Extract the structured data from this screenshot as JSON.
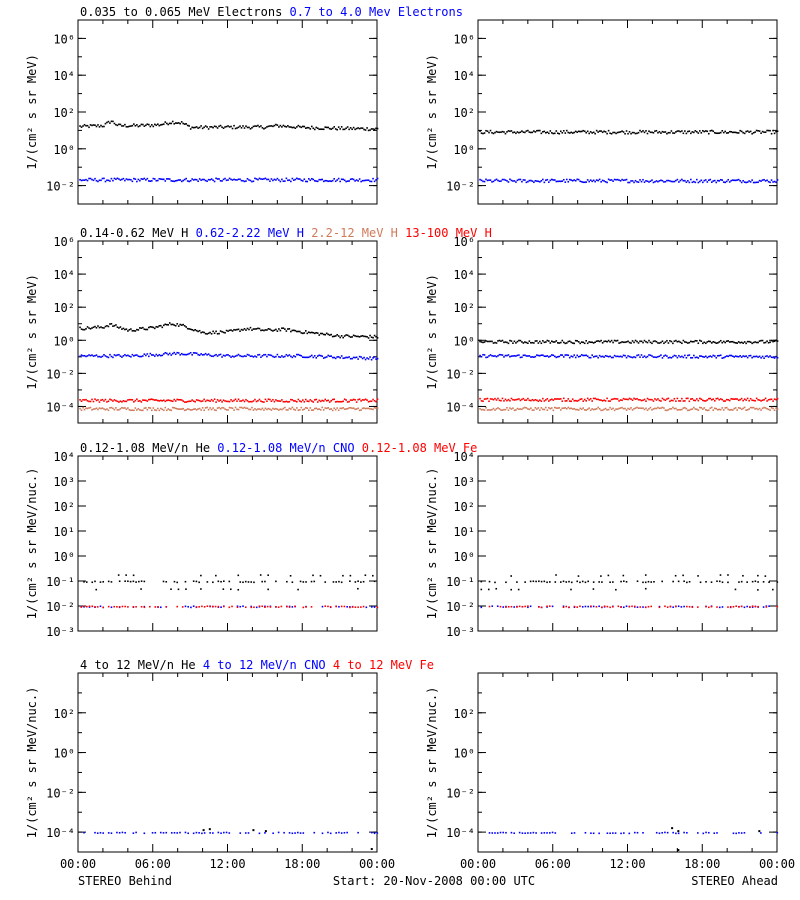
{
  "footer": {
    "left": "STEREO Behind",
    "center": "Start: 20-Nov-2008 00:00 UTC",
    "right": "STEREO Ahead"
  },
  "x_tick_labels": [
    "00:00",
    "06:00",
    "12:00",
    "18:00",
    "00:00"
  ],
  "colors": {
    "black": "#000000",
    "blue": "#0000ff",
    "orange": "#d07a5a",
    "red": "#ff0000"
  },
  "chart_data": [
    {
      "id": "electrons",
      "type": "scatter",
      "ylabel": "1/(cm² s sr MeV)",
      "ylim_log10": [
        -3,
        7
      ],
      "y_ticks": [
        {
          "exp": -2,
          "label": "10⁻²"
        },
        {
          "exp": 0,
          "label": "10⁰"
        },
        {
          "exp": 2,
          "label": "10²"
        },
        {
          "exp": 4,
          "label": "10⁴"
        },
        {
          "exp": 6,
          "label": "10⁶"
        }
      ],
      "legend": [
        {
          "text": "0.035 to 0.065 MeV Electrons",
          "color": "#000000"
        },
        {
          "text": "0.7 to 4.0 Mev Electrons",
          "color": "#0000ff"
        }
      ],
      "behind": [
        {
          "name": "0.035 to 0.065 MeV Electrons",
          "color": "#000000",
          "log_points": [
            [
              0,
              1.25
            ],
            [
              2,
              1.3
            ],
            [
              2.6,
              1.55
            ],
            [
              3.2,
              1.3
            ],
            [
              5,
              1.3
            ],
            [
              6.5,
              1.35
            ],
            [
              7.5,
              1.5
            ],
            [
              8.3,
              1.45
            ],
            [
              9,
              1.2
            ],
            [
              12,
              1.22
            ],
            [
              15,
              1.22
            ],
            [
              16,
              1.3
            ],
            [
              18,
              1.2
            ],
            [
              21,
              1.15
            ],
            [
              24,
              1.12
            ]
          ]
        },
        {
          "name": "0.7 to 4.0 Mev Electrons",
          "color": "#0000ff",
          "log_points": [
            [
              0,
              -1.65
            ],
            [
              24,
              -1.65
            ]
          ]
        }
      ],
      "ahead": [
        {
          "name": "0.035 to 0.065 MeV Electrons",
          "color": "#000000",
          "log_points": [
            [
              0,
              0.95
            ],
            [
              24,
              0.95
            ]
          ]
        },
        {
          "name": "0.7 to 4.0 Mev Electrons",
          "color": "#0000ff",
          "log_points": [
            [
              0,
              -1.7
            ],
            [
              24,
              -1.7
            ]
          ]
        }
      ]
    },
    {
      "id": "protons",
      "type": "scatter",
      "ylabel": "1/(cm² s sr MeV)",
      "ylim_log10": [
        -5,
        6
      ],
      "y_ticks": [
        {
          "exp": -4,
          "label": "10⁻⁴"
        },
        {
          "exp": -2,
          "label": "10⁻²"
        },
        {
          "exp": 0,
          "label": "10⁰"
        },
        {
          "exp": 2,
          "label": "10²"
        },
        {
          "exp": 4,
          "label": "10⁴"
        },
        {
          "exp": 6,
          "label": "10⁶"
        }
      ],
      "legend": [
        {
          "text": "0.14-0.62 MeV H",
          "color": "#000000"
        },
        {
          "text": "0.62-2.22 MeV H",
          "color": "#0000ff"
        },
        {
          "text": "2.2-12 MeV H",
          "color": "#d07a5a"
        },
        {
          "text": "13-100 MeV H",
          "color": "#ff0000"
        }
      ],
      "behind": [
        {
          "name": "0.14-0.62 MeV H",
          "color": "#000000",
          "log_points": [
            [
              0,
              0.75
            ],
            [
              2,
              0.85
            ],
            [
              2.5,
              1.0
            ],
            [
              4,
              0.65
            ],
            [
              6,
              0.8
            ],
            [
              7.5,
              1.05
            ],
            [
              8.5,
              0.9
            ],
            [
              10,
              0.5
            ],
            [
              12,
              0.55
            ],
            [
              13.5,
              0.75
            ],
            [
              15,
              0.65
            ],
            [
              16.5,
              0.7
            ],
            [
              18,
              0.55
            ],
            [
              21,
              0.3
            ],
            [
              24,
              0.25
            ]
          ]
        },
        {
          "name": "0.62-2.22 MeV H",
          "color": "#0000ff",
          "log_points": [
            [
              0,
              -0.9
            ],
            [
              4,
              -0.9
            ],
            [
              8,
              -0.75
            ],
            [
              12,
              -0.9
            ],
            [
              18,
              -0.9
            ],
            [
              24,
              -1.05
            ]
          ]
        },
        {
          "name": "2.2-12 MeV H",
          "color": "#d07a5a",
          "log_points": [
            [
              0,
              -4.1
            ],
            [
              24,
              -4.1
            ]
          ]
        },
        {
          "name": "13-100 MeV H",
          "color": "#ff0000",
          "log_points": [
            [
              0,
              -3.6
            ],
            [
              24,
              -3.6
            ]
          ]
        }
      ],
      "ahead": [
        {
          "name": "0.14-0.62 MeV H",
          "color": "#000000",
          "log_points": [
            [
              0,
              -0.05
            ],
            [
              24,
              -0.05
            ]
          ]
        },
        {
          "name": "0.62-2.22 MeV H",
          "color": "#0000ff",
          "log_points": [
            [
              0,
              -0.9
            ],
            [
              24,
              -0.95
            ]
          ]
        },
        {
          "name": "2.2-12 MeV H",
          "color": "#d07a5a",
          "log_points": [
            [
              0,
              -4.1
            ],
            [
              24,
              -4.1
            ]
          ]
        },
        {
          "name": "13-100 MeV H",
          "color": "#ff0000",
          "log_points": [
            [
              0,
              -3.55
            ],
            [
              24,
              -3.55
            ]
          ]
        }
      ]
    },
    {
      "id": "heavy-low",
      "type": "scatter",
      "ylabel": "1/(cm² s sr MeV/nuc.)",
      "ylim_log10": [
        -3,
        4
      ],
      "y_ticks": [
        {
          "exp": -3,
          "label": "10⁻³"
        },
        {
          "exp": -2,
          "label": "10⁻²"
        },
        {
          "exp": -1,
          "label": "10⁻¹"
        },
        {
          "exp": 0,
          "label": "10⁰"
        },
        {
          "exp": 1,
          "label": "10¹"
        },
        {
          "exp": 2,
          "label": "10²"
        },
        {
          "exp": 3,
          "label": "10³"
        },
        {
          "exp": 4,
          "label": "10⁴"
        }
      ],
      "legend": [
        {
          "text": "0.12-1.08 MeV/n He",
          "color": "#000000"
        },
        {
          "text": "0.12-1.08 MeV/n CNO",
          "color": "#0000ff"
        },
        {
          "text": "0.12-1.08 MeV Fe",
          "color": "#ff0000"
        }
      ],
      "behind": [
        {
          "name": "0.12-1.08 MeV/n He",
          "color": "#000000",
          "levels": [
            -1.0,
            -1.3,
            -0.75
          ]
        },
        {
          "name": "0.12-1.08 MeV/n CNO",
          "color": "#0000ff",
          "levels": [
            -2.0
          ]
        },
        {
          "name": "0.12-1.08 MeV Fe",
          "color": "#ff0000",
          "levels": [
            -2.0
          ]
        }
      ],
      "ahead": [
        {
          "name": "0.12-1.08 MeV/n He",
          "color": "#000000",
          "levels": [
            -1.0,
            -1.3,
            -0.75
          ]
        },
        {
          "name": "0.12-1.08 MeV/n CNO",
          "color": "#0000ff",
          "levels": [
            -2.0
          ]
        },
        {
          "name": "0.12-1.08 MeV Fe",
          "color": "#ff0000",
          "levels": [
            -2.0
          ]
        }
      ]
    },
    {
      "id": "heavy-high",
      "type": "scatter",
      "ylabel": "1/(cm² s sr MeV/nuc.)",
      "ylim_log10": [
        -5,
        4
      ],
      "y_ticks": [
        {
          "exp": -4,
          "label": "10⁻⁴"
        },
        {
          "exp": -2,
          "label": "10⁻²"
        },
        {
          "exp": 0,
          "label": "10⁰"
        },
        {
          "exp": 2,
          "label": "10²"
        }
      ],
      "legend": [
        {
          "text": "4 to 12 MeV/n He",
          "color": "#000000"
        },
        {
          "text": "4 to 12 MeV/n CNO",
          "color": "#0000ff"
        },
        {
          "text": "4 to 12 MeV Fe",
          "color": "#ff0000"
        }
      ],
      "behind": [
        {
          "name": "4 to 12 MeV/n He",
          "color": "#000000",
          "points": [
            [
              10,
              -3.85
            ],
            [
              10.5,
              -3.8
            ],
            [
              14,
              -3.85
            ],
            [
              15,
              -3.9
            ],
            [
              23.5,
              -4.8
            ]
          ]
        },
        {
          "name": "4 to 12 MeV/n CNO",
          "color": "#0000ff",
          "levels": [
            -4.0
          ]
        }
      ],
      "ahead": [
        {
          "name": "4 to 12 MeV/n He",
          "color": "#000000",
          "points": [
            [
              15.5,
              -3.75
            ],
            [
              16,
              -3.9
            ],
            [
              22.5,
              -3.9
            ],
            [
              16,
              -4.85
            ]
          ]
        },
        {
          "name": "4 to 12 MeV/n CNO",
          "color": "#0000ff",
          "levels": [
            -4.0
          ]
        }
      ]
    }
  ]
}
